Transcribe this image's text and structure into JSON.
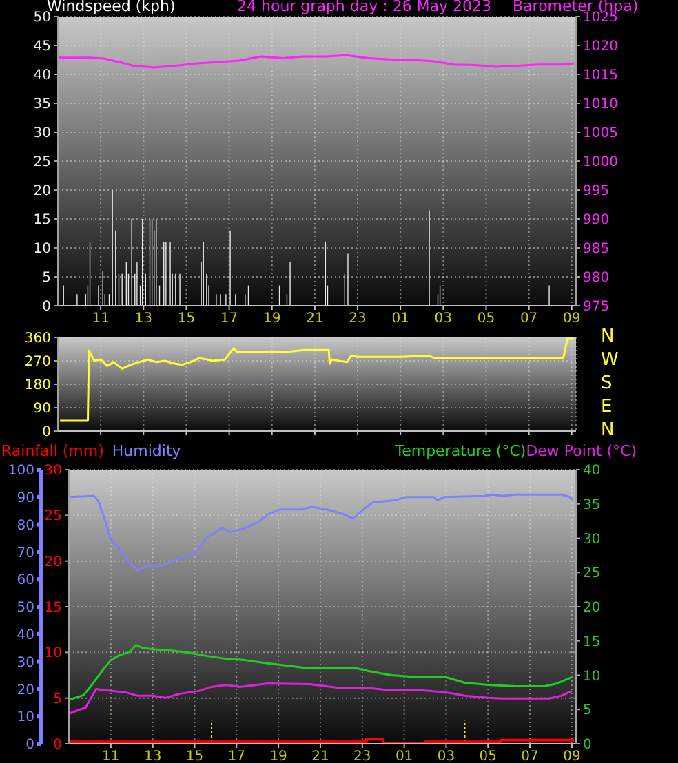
{
  "chart_data": [
    {
      "type": "bar",
      "title": "24 hour graph day : 26 May 2023",
      "ylabel": "Windspeed (kph)",
      "y2label": "Barometer (hpa)",
      "xlim": [
        "2023-05-26T09:00",
        "2023-05-27T09:12"
      ],
      "xticks": [
        {
          "value": "2023-05-26T11:00",
          "label": "11"
        },
        {
          "value": "2023-05-26T13:00",
          "label": "13"
        },
        {
          "value": "2023-05-26T15:00",
          "label": "15"
        },
        {
          "value": "2023-05-26T17:00",
          "label": "17"
        },
        {
          "value": "2023-05-26T19:00",
          "label": "19"
        },
        {
          "value": "2023-05-26T21:00",
          "label": "21"
        },
        {
          "value": "2023-05-26T23:00",
          "label": "23"
        },
        {
          "value": "2023-05-27T01:00",
          "label": "01"
        },
        {
          "value": "2023-05-27T03:00",
          "label": "03"
        },
        {
          "value": "2023-05-27T05:00",
          "label": "05"
        },
        {
          "value": "2023-05-27T07:00",
          "label": "07"
        },
        {
          "value": "2023-05-27T09:00",
          "label": "09"
        }
      ],
      "ylim": [
        0,
        50
      ],
      "yticks": [
        0,
        5,
        10,
        15,
        20,
        25,
        30,
        35,
        40,
        45,
        50
      ],
      "y2lim": [
        975,
        1025
      ],
      "y2ticks": [
        975,
        980,
        985,
        990,
        995,
        1000,
        1005,
        1010,
        1015,
        1020,
        1025
      ],
      "grid": true,
      "series": [
        {
          "color": "#e8e8e8",
          "x": [
            "2023-05-26T09:16",
            "2023-05-26T09:54",
            "2023-05-26T10:18",
            "2023-05-26T10:24",
            "2023-05-26T10:30",
            "2023-05-26T10:54",
            "2023-05-26T11:06",
            "2023-05-26T11:12",
            "2023-05-26T11:24",
            "2023-05-26T11:33",
            "2023-05-26T11:42",
            "2023-05-26T11:51",
            "2023-05-26T12:00",
            "2023-05-26T12:12",
            "2023-05-26T12:18",
            "2023-05-26T12:27",
            "2023-05-26T12:36",
            "2023-05-26T12:42",
            "2023-05-26T12:51",
            "2023-05-26T12:57",
            "2023-05-26T13:06",
            "2023-05-26T13:18",
            "2023-05-26T13:24",
            "2023-05-26T13:30",
            "2023-05-26T13:36",
            "2023-05-26T13:45",
            "2023-05-26T13:57",
            "2023-05-26T14:03",
            "2023-05-26T14:15",
            "2023-05-26T14:21",
            "2023-05-26T14:30",
            "2023-05-26T14:42",
            "2023-05-26T15:42",
            "2023-05-26T15:48",
            "2023-05-26T15:57",
            "2023-05-26T16:03",
            "2023-05-26T16:24",
            "2023-05-26T16:36",
            "2023-05-26T16:51",
            "2023-05-26T17:03",
            "2023-05-26T17:18",
            "2023-05-26T17:45",
            "2023-05-26T17:54",
            "2023-05-26T19:21",
            "2023-05-26T19:42",
            "2023-05-26T19:51",
            "2023-05-26T21:30",
            "2023-05-26T21:36",
            "2023-05-26T22:24",
            "2023-05-26T22:33",
            "2023-05-27T02:21",
            "2023-05-27T02:45",
            "2023-05-27T02:51",
            "2023-05-27T07:57"
          ],
          "values": [
            3.5,
            2,
            2,
            3.5,
            11,
            3.5,
            6,
            2,
            2,
            20,
            13,
            5.5,
            5.5,
            7.5,
            5.5,
            15,
            5.5,
            7.5,
            3.5,
            15,
            5.5,
            15,
            15,
            13,
            15,
            3.5,
            11,
            11,
            11,
            5.5,
            5.5,
            5.5,
            7.5,
            11,
            5.5,
            3.5,
            2,
            2,
            2,
            13,
            2,
            2,
            3.5,
            3.5,
            2,
            7.5,
            11,
            3.5,
            5.5,
            9,
            16.5,
            2,
            3.5,
            3.5
          ]
        },
        {
          "type": "line",
          "axis": "y2",
          "color": "#ff22ff",
          "x": [
            "2023-05-26T09:00",
            "2023-05-26T10:30",
            "2023-05-26T11:12",
            "2023-05-26T12:00",
            "2023-05-26T12:30",
            "2023-05-26T13:30",
            "2023-05-26T14:30",
            "2023-05-26T15:30",
            "2023-05-26T16:30",
            "2023-05-26T17:30",
            "2023-05-26T18:30",
            "2023-05-26T19:30",
            "2023-05-26T20:30",
            "2023-05-26T21:30",
            "2023-05-26T22:30",
            "2023-05-26T23:30",
            "2023-05-27T00:30",
            "2023-05-27T01:30",
            "2023-05-27T02:30",
            "2023-05-27T03:30",
            "2023-05-27T04:30",
            "2023-05-27T05:30",
            "2023-05-27T06:30",
            "2023-05-27T07:30",
            "2023-05-27T08:30",
            "2023-05-27T09:06"
          ],
          "values": [
            1017.9,
            1017.9,
            1017.7,
            1017.0,
            1016.5,
            1016.2,
            1016.5,
            1016.9,
            1017.1,
            1017.4,
            1018.1,
            1017.8,
            1018.1,
            1018.1,
            1018.3,
            1017.8,
            1017.6,
            1017.5,
            1017.3,
            1016.7,
            1016.6,
            1016.3,
            1016.5,
            1016.7,
            1016.7,
            1016.9
          ]
        }
      ]
    },
    {
      "type": "line",
      "xlim": [
        "2023-05-26T09:00",
        "2023-05-27T09:12"
      ],
      "xticks": [
        {
          "value": "2023-05-26T11:00",
          "label": null
        },
        {
          "value": "2023-05-26T13:00",
          "label": null
        },
        {
          "value": "2023-05-26T15:00",
          "label": null
        },
        {
          "value": "2023-05-26T17:00",
          "label": null
        },
        {
          "value": "2023-05-26T19:00",
          "label": null
        },
        {
          "value": "2023-05-26T21:00",
          "label": null
        },
        {
          "value": "2023-05-26T23:00",
          "label": null
        },
        {
          "value": "2023-05-27T01:00",
          "label": null
        },
        {
          "value": "2023-05-27T03:00",
          "label": null
        },
        {
          "value": "2023-05-27T05:00",
          "label": null
        },
        {
          "value": "2023-05-27T07:00",
          "label": null
        },
        {
          "value": "2023-05-27T09:00",
          "label": null
        }
      ],
      "ylim": [
        0,
        360
      ],
      "yticks": [
        0,
        90,
        180,
        270,
        360
      ],
      "grid": true,
      "tick_labels": "y",
      "annotations": [
        "N",
        "W",
        "S",
        "E",
        "N"
      ],
      "series": [
        {
          "color": "#ffff33",
          "x": [
            "2023-05-26T09:06",
            "2023-05-26T10:24",
            "2023-05-26T10:27",
            "2023-05-26T10:42",
            "2023-05-26T11:00",
            "2023-05-26T11:18",
            "2023-05-26T11:36",
            "2023-05-26T12:00",
            "2023-05-26T12:24",
            "2023-05-26T12:48",
            "2023-05-26T13:12",
            "2023-05-26T13:36",
            "2023-05-26T14:00",
            "2023-05-26T14:24",
            "2023-05-26T14:48",
            "2023-05-26T15:12",
            "2023-05-26T15:36",
            "2023-05-26T16:00",
            "2023-05-26T16:12",
            "2023-05-26T16:48",
            "2023-05-26T17:12",
            "2023-05-26T17:24",
            "2023-05-26T18:30",
            "2023-05-26T19:30",
            "2023-05-26T20:30",
            "2023-05-26T21:39",
            "2023-05-26T21:42",
            "2023-05-26T21:48",
            "2023-05-26T22:30",
            "2023-05-26T22:42",
            "2023-05-26T23:00",
            "2023-05-27T01:00",
            "2023-05-27T02:18",
            "2023-05-27T02:36",
            "2023-05-27T07:30",
            "2023-05-27T08:36",
            "2023-05-27T08:48",
            "2023-05-27T09:06"
          ],
          "values": [
            40,
            40,
            309,
            270,
            275,
            250,
            265,
            240,
            255,
            265,
            275,
            265,
            270,
            260,
            255,
            265,
            280,
            275,
            270,
            275,
            318,
            303,
            303,
            303,
            312,
            312,
            259,
            275,
            265,
            290,
            285,
            285,
            290,
            280,
            280,
            280,
            354,
            355
          ]
        }
      ]
    },
    {
      "type": "line",
      "xlim": [
        "2023-05-26T09:00",
        "2023-05-27T09:12"
      ],
      "xticks": [
        {
          "value": "2023-05-26T11:00",
          "label": "11"
        },
        {
          "value": "2023-05-26T13:00",
          "label": "13"
        },
        {
          "value": "2023-05-26T15:00",
          "label": "15"
        },
        {
          "value": "2023-05-26T17:00",
          "label": "17"
        },
        {
          "value": "2023-05-26T19:00",
          "label": "19"
        },
        {
          "value": "2023-05-26T21:00",
          "label": "21"
        },
        {
          "value": "2023-05-26T23:00",
          "label": "23"
        },
        {
          "value": "2023-05-27T01:00",
          "label": "01"
        },
        {
          "value": "2023-05-27T03:00",
          "label": "03"
        },
        {
          "value": "2023-05-27T05:00",
          "label": "05"
        },
        {
          "value": "2023-05-27T07:00",
          "label": "07"
        },
        {
          "value": "2023-05-27T09:00",
          "label": "09"
        }
      ],
      "ylim": [
        0,
        30
      ],
      "yticks": [
        0,
        5,
        10,
        15,
        20,
        25,
        30
      ],
      "y2lim": [
        0,
        40
      ],
      "y2ticks": [
        0,
        5,
        10,
        15,
        20,
        25,
        30,
        35,
        40
      ],
      "y3lim": [
        0,
        100
      ],
      "y3ticks": [
        0,
        10,
        20,
        30,
        40,
        50,
        60,
        70,
        80,
        90,
        100
      ],
      "grid": true,
      "legend": "top",
      "series": [
        {
          "name": "Rainfall (mm)",
          "type": "step",
          "color": "#ff0000",
          "x": [
            "2023-05-26T09:00",
            "2023-05-26T23:12",
            "2023-05-27T00:00",
            "2023-05-27T02:00",
            "2023-05-27T05:36",
            "2023-05-27T09:06"
          ],
          "values": [
            0.2,
            0.5,
            0,
            0.2,
            0.4,
            0.4
          ]
        },
        {
          "name": "Humidity",
          "axis": "y3",
          "color": "#8080ff",
          "x": [
            "2023-05-26T09:00",
            "2023-05-26T10:12",
            "2023-05-26T10:24",
            "2023-05-26T10:42",
            "2023-05-26T11:00",
            "2023-05-26T11:24",
            "2023-05-26T11:54",
            "2023-05-26T12:18",
            "2023-05-26T12:45",
            "2023-05-26T13:24",
            "2023-05-26T14:00",
            "2023-05-26T14:30",
            "2023-05-26T15:00",
            "2023-05-26T15:36",
            "2023-05-26T16:18",
            "2023-05-26T16:42",
            "2023-05-26T17:24",
            "2023-05-26T18:00",
            "2023-05-26T18:30",
            "2023-05-26T19:06",
            "2023-05-26T20:00",
            "2023-05-26T20:36",
            "2023-05-26T21:18",
            "2023-05-26T22:00",
            "2023-05-26T22:33",
            "2023-05-26T23:06",
            "2023-05-26T23:30",
            "2023-05-27T00:36",
            "2023-05-27T01:06",
            "2023-05-27T02:24",
            "2023-05-27T02:36",
            "2023-05-27T02:54",
            "2023-05-27T04:48",
            "2023-05-27T05:12",
            "2023-05-27T05:42",
            "2023-05-27T06:18",
            "2023-05-27T08:30",
            "2023-05-27T08:54",
            "2023-05-27T09:03"
          ],
          "values": [
            90,
            90.4,
            88.6,
            82.2,
            74.6,
            71.3,
            65.9,
            63.2,
            65,
            65,
            66.8,
            68.1,
            69.5,
            75.3,
            78.6,
            77.3,
            78.6,
            80.8,
            83.7,
            85.5,
            85.5,
            86.4,
            85.5,
            84,
            82.2,
            85.8,
            88,
            88.9,
            90,
            90,
            88.9,
            90,
            90.4,
            90.9,
            90.4,
            90.9,
            90.9,
            90,
            88.9
          ]
        },
        {
          "name": "Temperature (°C)",
          "axis": "y2",
          "color": "#22cc22",
          "x": [
            "2023-05-26T09:00",
            "2023-05-26T09:42",
            "2023-05-26T10:06",
            "2023-05-26T10:36",
            "2023-05-26T11:00",
            "2023-05-26T11:24",
            "2023-05-26T11:54",
            "2023-05-26T12:12",
            "2023-05-26T12:30",
            "2023-05-26T13:00",
            "2023-05-26T13:54",
            "2023-05-26T14:42",
            "2023-05-26T15:36",
            "2023-05-26T16:30",
            "2023-05-26T17:24",
            "2023-05-26T18:18",
            "2023-05-26T19:06",
            "2023-05-26T20:12",
            "2023-05-26T22:36",
            "2023-05-26T23:18",
            "2023-05-27T00:24",
            "2023-05-27T01:42",
            "2023-05-27T03:00",
            "2023-05-27T03:54",
            "2023-05-27T05:00",
            "2023-05-27T06:18",
            "2023-05-27T07:42",
            "2023-05-27T08:18",
            "2023-05-27T09:00"
          ],
          "values": [
            6.4,
            7.1,
            8.6,
            10.7,
            12.2,
            12.9,
            13.4,
            14.4,
            14.0,
            13.8,
            13.6,
            13.3,
            12.8,
            12.4,
            12.2,
            11.8,
            11.5,
            11.1,
            11.1,
            10.6,
            10.0,
            9.7,
            9.7,
            8.9,
            8.6,
            8.4,
            8.4,
            8.8,
            9.7
          ]
        },
        {
          "name": "Dew Point (°C)",
          "axis": "y2",
          "color": "#dd22dd",
          "x": [
            "2023-05-26T09:00",
            "2023-05-26T09:48",
            "2023-05-26T10:18",
            "2023-05-26T10:48",
            "2023-05-26T11:42",
            "2023-05-26T12:18",
            "2023-05-26T13:00",
            "2023-05-26T13:36",
            "2023-05-26T14:18",
            "2023-05-26T15:12",
            "2023-05-26T15:48",
            "2023-05-26T16:30",
            "2023-05-26T17:09",
            "2023-05-26T18:30",
            "2023-05-26T20:30",
            "2023-05-26T21:48",
            "2023-05-26T23:06",
            "2023-05-27T00:24",
            "2023-05-27T01:54",
            "2023-05-27T03:00",
            "2023-05-27T03:54",
            "2023-05-27T05:00",
            "2023-05-27T05:42",
            "2023-05-27T07:54",
            "2023-05-27T08:30",
            "2023-05-27T09:00"
          ],
          "values": [
            4.4,
            5.3,
            8.0,
            7.8,
            7.5,
            7.0,
            7.0,
            6.7,
            7.3,
            7.7,
            8.3,
            8.6,
            8.3,
            8.8,
            8.7,
            8.2,
            8.2,
            7.8,
            7.8,
            7.5,
            7.0,
            6.7,
            6.6,
            6.6,
            7.0,
            7.7
          ]
        },
        {
          "type": "bar",
          "color": "#ffff00",
          "line_style": "dotted",
          "x": [
            "2023-05-26T15:48",
            "2023-05-27T03:54"
          ],
          "values": [
            2.5,
            2.5
          ]
        }
      ]
    }
  ]
}
